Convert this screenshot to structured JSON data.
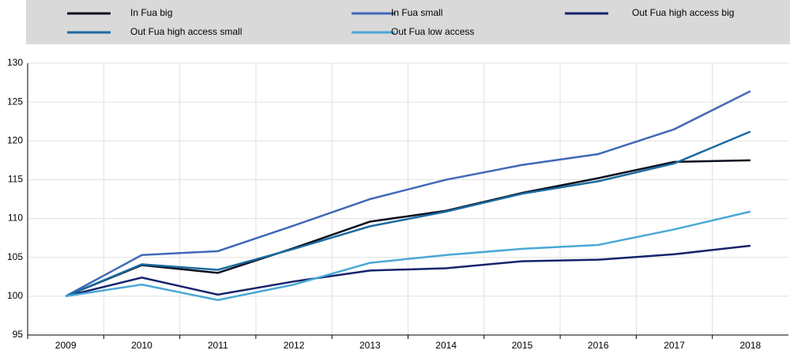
{
  "chart_data": {
    "type": "line",
    "categories": [
      "2009",
      "2010",
      "2011",
      "2012",
      "2013",
      "2014",
      "2015",
      "2016",
      "2017",
      "2018"
    ],
    "series": [
      {
        "name": "In Fua big",
        "color": "#0a0f1e",
        "values": [
          100,
          104,
          103,
          106.2,
          109.6,
          111,
          113.3,
          115.2,
          117.3,
          117.5
        ]
      },
      {
        "name": "In Fua small",
        "color": "#4169b8",
        "values": [
          100,
          105.3,
          105.8,
          109.1,
          112.5,
          115,
          116.9,
          118.3,
          121.5,
          126.4
        ]
      },
      {
        "name": "Out Fua high access big",
        "color": "#15236b",
        "values": [
          100,
          102.4,
          100.2,
          101.9,
          103.3,
          103.6,
          104.5,
          104.7,
          105.4,
          106.5
        ]
      },
      {
        "name": "Out Fua high access small",
        "color": "#1b6aa0",
        "values": [
          100,
          104.1,
          103.4,
          106.1,
          109,
          110.9,
          113.2,
          114.8,
          117.1,
          121.2
        ]
      },
      {
        "name": "Out Fua low access",
        "color": "#4aa8d6",
        "values": [
          100,
          101.5,
          99.5,
          101.5,
          104.3,
          105.3,
          106.1,
          106.6,
          108.6,
          110.9
        ]
      }
    ],
    "ylim": [
      95,
      130
    ],
    "yticks": [
      95,
      100,
      105,
      110,
      115,
      120,
      125,
      130
    ],
    "grid": true
  }
}
